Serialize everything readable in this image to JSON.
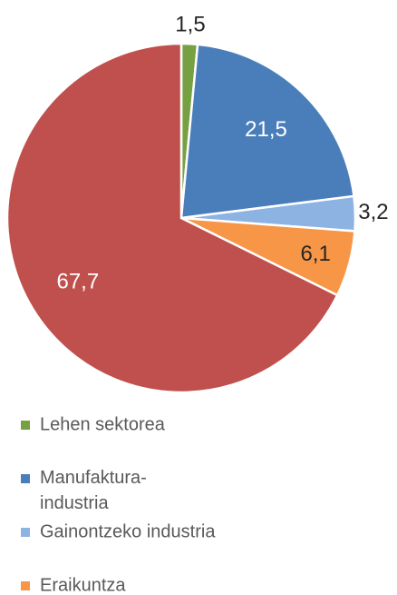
{
  "chart_data": {
    "type": "pie",
    "categories": [
      "Lehen sektorea",
      "Manufaktura-industria",
      "Gainontzeko industria",
      "Eraikuntza",
      null
    ],
    "values": [
      1.5,
      21.5,
      3.2,
      6.1,
      67.7
    ],
    "value_labels": [
      "1,5",
      "21,5",
      "3,2",
      "6,1",
      "67,7"
    ],
    "colors": [
      "#77a043",
      "#4a7ebb",
      "#8db3e2",
      "#f79646",
      "#c0504d"
    ],
    "legend": "bottom"
  }
}
